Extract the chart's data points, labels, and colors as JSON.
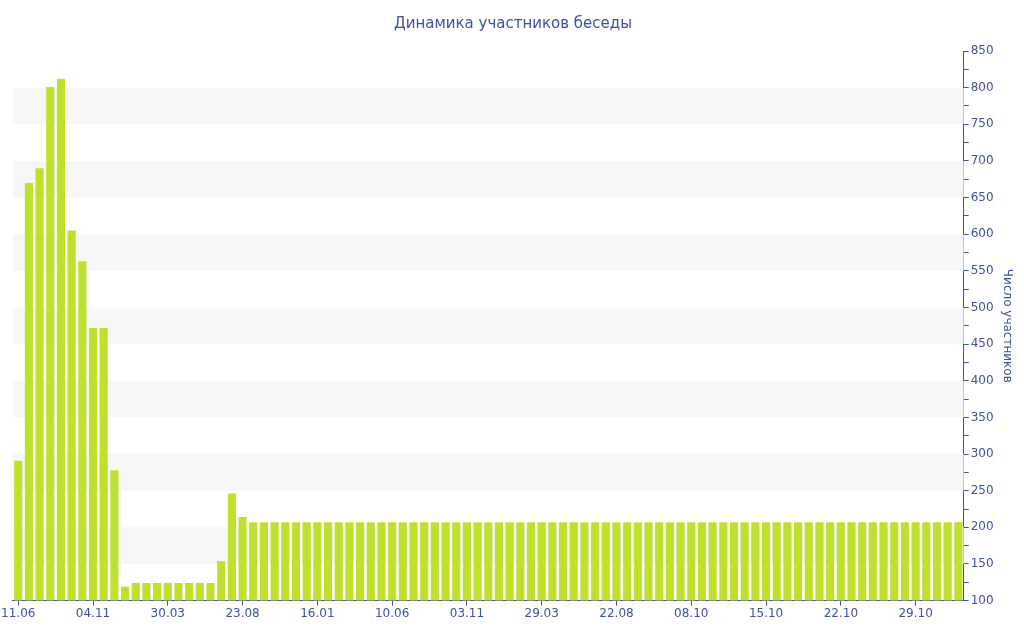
{
  "chart_data": {
    "type": "bar",
    "title": "Динамика участников беседы",
    "ylabel": "Число участников",
    "categories": [
      "11.06",
      null,
      null,
      null,
      null,
      null,
      null,
      "04.11",
      null,
      null,
      null,
      null,
      null,
      null,
      "30.03",
      null,
      null,
      null,
      null,
      null,
      null,
      "23.08",
      null,
      null,
      null,
      null,
      null,
      null,
      "16.01",
      null,
      null,
      null,
      null,
      null,
      null,
      "10.06",
      null,
      null,
      null,
      null,
      null,
      null,
      "03.11",
      null,
      null,
      null,
      null,
      null,
      null,
      "29.03",
      null,
      null,
      null,
      null,
      null,
      null,
      "22.08",
      null,
      null,
      null,
      null,
      null,
      null,
      "08.10",
      null,
      null,
      null,
      null,
      null,
      null,
      "15.10",
      null,
      null,
      null,
      null,
      null,
      null,
      "22.10",
      null,
      null,
      null,
      null,
      null,
      null,
      "29.10",
      null,
      null,
      null,
      null
    ],
    "values": [
      291,
      670,
      690,
      801,
      812,
      605,
      563,
      472,
      472,
      278,
      119,
      124,
      124,
      124,
      124,
      124,
      124,
      124,
      124,
      154,
      246,
      214,
      207,
      207,
      207,
      207,
      207,
      207,
      207,
      207,
      207,
      207,
      207,
      207,
      207,
      207,
      207,
      207,
      207,
      207,
      207,
      207,
      207,
      207,
      207,
      207,
      207,
      207,
      207,
      207,
      207,
      207,
      207,
      207,
      207,
      207,
      207,
      207,
      207,
      207,
      207,
      207,
      207,
      207,
      207,
      207,
      207,
      207,
      207,
      207,
      207,
      207,
      207,
      207,
      207,
      207,
      207,
      207,
      207,
      207,
      207,
      207,
      207,
      207,
      207,
      207,
      207,
      207,
      207
    ],
    "color": "#bde12d",
    "ylim": [
      100,
      850
    ],
    "yticks": [
      100,
      {
        "value": 125,
        "label": null
      },
      150,
      {
        "value": 175,
        "label": null
      },
      200,
      {
        "value": 225,
        "label": null
      },
      250,
      {
        "value": 275,
        "label": null
      },
      300,
      {
        "value": 325,
        "label": null
      },
      350,
      {
        "value": 375,
        "label": null
      },
      400,
      {
        "value": 425,
        "label": null
      },
      450,
      {
        "value": 475,
        "label": null
      },
      500,
      {
        "value": 525,
        "label": null
      },
      550,
      {
        "value": 575,
        "label": null
      },
      600,
      {
        "value": 625,
        "label": null
      },
      650,
      {
        "value": 675,
        "label": null
      },
      700,
      {
        "value": 725,
        "label": null
      },
      750,
      {
        "value": 775,
        "label": null
      },
      800,
      {
        "value": 825,
        "label": null
      },
      850
    ],
    "bands": [
      {
        "axis": "y",
        "from": 150,
        "to": 200,
        "color": "#f7f7f7"
      },
      {
        "axis": "y",
        "from": 250,
        "to": 300,
        "color": "#f7f7f7"
      },
      {
        "axis": "y",
        "from": 350,
        "to": 400,
        "color": "#f7f7f7"
      },
      {
        "axis": "y",
        "from": 450,
        "to": 500,
        "color": "#f7f7f7"
      },
      {
        "axis": "y",
        "from": 550,
        "to": 600,
        "color": "#f7f7f7"
      },
      {
        "axis": "y",
        "from": 650,
        "to": 700,
        "color": "#f7f7f7"
      },
      {
        "axis": "y",
        "from": 750,
        "to": 800,
        "color": "#f7f7f7"
      }
    ]
  }
}
